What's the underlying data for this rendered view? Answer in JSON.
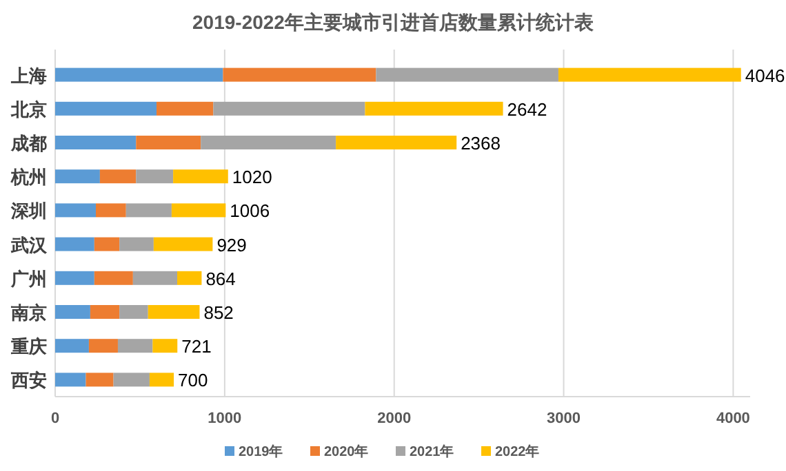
{
  "chart_data": {
    "type": "bar",
    "orientation": "horizontal",
    "stacked": true,
    "title": "2019-2022年主要城市引进首店数量累计统计表",
    "categories": [
      "上海",
      "北京",
      "成都",
      "杭州",
      "深圳",
      "武汉",
      "广州",
      "南京",
      "重庆",
      "西安"
    ],
    "series": [
      {
        "name": "2019年",
        "color": "#5b9bd5",
        "values": [
          990,
          598,
          477,
          264,
          240,
          231,
          231,
          207,
          199,
          181
        ]
      },
      {
        "name": "2020年",
        "color": "#ed7d31",
        "values": [
          903,
          335,
          382,
          213,
          178,
          148,
          228,
          172,
          171,
          163
        ]
      },
      {
        "name": "2021年",
        "color": "#a5a5a5",
        "values": [
          1076,
          895,
          797,
          219,
          269,
          202,
          261,
          169,
          205,
          213
        ]
      },
      {
        "name": "2022年",
        "color": "#ffc000",
        "values": [
          1077,
          814,
          712,
          324,
          319,
          348,
          144,
          304,
          146,
          143
        ]
      }
    ],
    "totals": [
      "4046",
      "2642",
      "2368",
      "1020",
      "1006",
      "929",
      "864",
      "852",
      "721",
      "700"
    ],
    "xlim": [
      0,
      4100
    ],
    "xticks": [
      0,
      1000,
      2000,
      3000,
      4000
    ],
    "grid": "x",
    "legend": "bottom"
  }
}
